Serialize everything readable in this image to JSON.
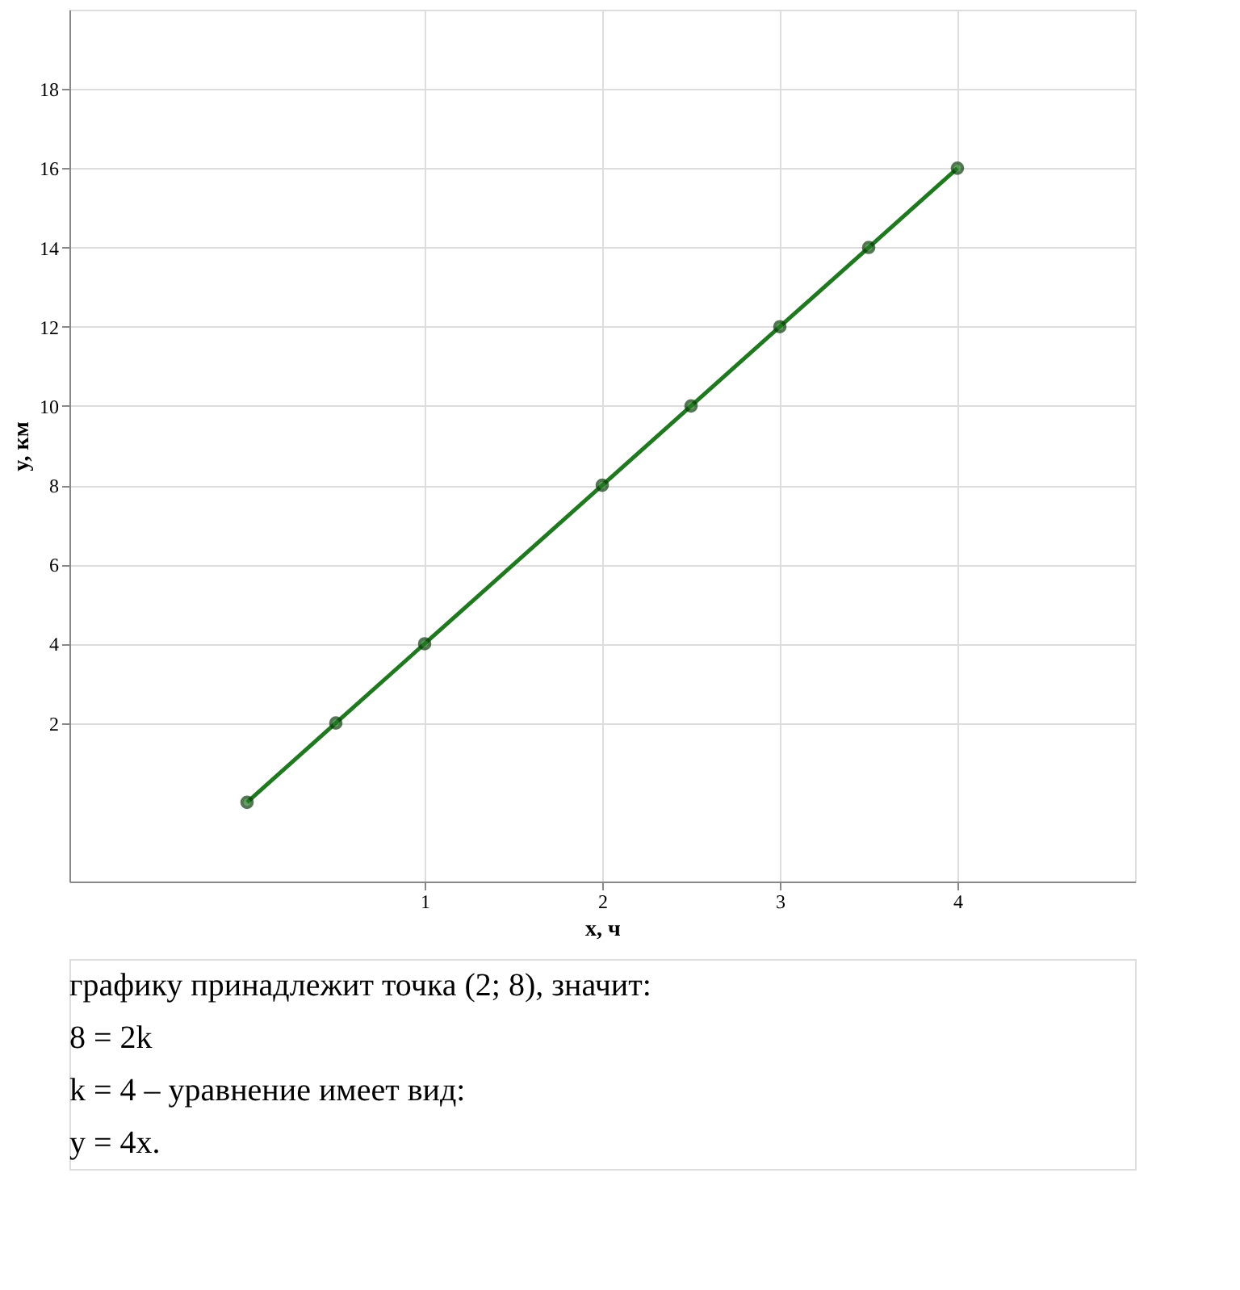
{
  "chart_data": {
    "type": "line",
    "xlabel": "x, ч",
    "ylabel": "y, км",
    "x": [
      0,
      0.5,
      1,
      2,
      2.5,
      3,
      3.5,
      4
    ],
    "series": [
      {
        "color": "#1f7a1f",
        "values": [
          0,
          2,
          4,
          8,
          10,
          12,
          14,
          16
        ]
      }
    ],
    "xlim": [
      -1,
      5
    ],
    "xticks": [
      1,
      2,
      3,
      4
    ],
    "ylim": [
      -2,
      20
    ],
    "yticks": [
      2,
      4,
      6,
      8,
      10,
      12,
      14,
      16,
      18
    ],
    "grid": true,
    "marker": "circle",
    "line_style": "solid",
    "annotations": [
      "графику принадлежит точка (2; 8), значит:",
      "8 = 2k",
      "k = 4 – уравнение имеет вид:",
      "y = 4x."
    ]
  }
}
